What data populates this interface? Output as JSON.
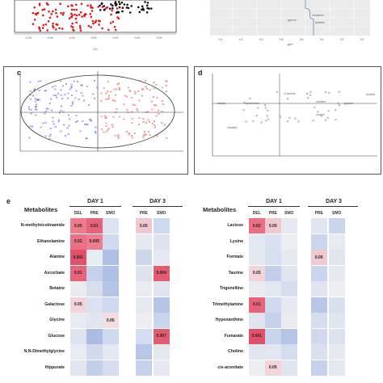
{
  "panels": {
    "a": {
      "xlabel": "LV1",
      "xticks": [
        "-0.03",
        "-0.02",
        "-0.01",
        "0.00",
        "0.01",
        "0.02",
        "0.03"
      ]
    },
    "b": {
      "labels": [
        "creatinine",
        "glycine",
        "betaine"
      ],
      "xticks": [
        "4.4",
        "4.2",
        "4.0",
        "3.8",
        "3.6",
        "3.4",
        "3.2",
        "3.0"
      ],
      "xlabel": "ppm"
    },
    "c": {
      "label": "c"
    },
    "d": {
      "label": "d",
      "annotations": [
        "lactate",
        "myoinositol",
        "taurine",
        "creatine",
        "glycine",
        "betaine",
        "creatine",
        "inositol"
      ]
    },
    "e": {
      "label": "e"
    }
  },
  "table": {
    "metabolites_header": "Metabolites",
    "day1": "DAY 1",
    "day3": "DAY 3",
    "cols": [
      "DEL",
      "PRE",
      "SMO",
      "PRE",
      "SMO"
    ],
    "left": {
      "rows": [
        "N-methylnicotinamide",
        "Ethanolamine",
        "Alanine",
        "Ascorbate",
        "Betaine",
        "Galactose",
        "Glycine",
        "Glucose",
        "N,N-Dimethylglycine",
        "Hippurate"
      ],
      "cells": [
        [
          {
            "c": "#ef7b8c",
            "v": "0.05"
          },
          {
            "c": "#e8627a",
            "v": "0.01"
          },
          {
            "c": "#dbe3ef",
            "v": ""
          },
          {
            "c": "#f0c8cf",
            "v": "0.05"
          },
          {
            "c": "#ced8ee",
            "v": ""
          }
        ],
        [
          {
            "c": "#ec6f84",
            "v": "0.02"
          },
          {
            "c": "#ee7b8e",
            "v": "0.005"
          },
          {
            "c": "#cfd9ef",
            "v": ""
          },
          {
            "c": "#e3e8f1",
            "v": ""
          },
          {
            "c": "#dfe3ec",
            "v": ""
          }
        ],
        [
          {
            "c": "#e4506b",
            "v": "0.001"
          },
          {
            "c": "#e7ebf2",
            "v": ""
          },
          {
            "c": "#aebfe5",
            "v": ""
          },
          {
            "c": "#cdd7ec",
            "v": ""
          },
          {
            "c": "#e6e9ef",
            "v": ""
          }
        ],
        [
          {
            "c": "#e8627a",
            "v": "0.01"
          },
          {
            "c": "#c6d2ec",
            "v": ""
          },
          {
            "c": "#afc0e6",
            "v": ""
          },
          {
            "c": "#dce2ee",
            "v": ""
          },
          {
            "c": "#e55b72",
            "v": "0.004"
          }
        ],
        [
          {
            "c": "#e9ebf0",
            "v": ""
          },
          {
            "c": "#d7deed",
            "v": ""
          },
          {
            "c": "#b4c4e7",
            "v": ""
          },
          {
            "c": "#e9ebf0",
            "v": ""
          },
          {
            "c": "#dfe4ef",
            "v": ""
          }
        ],
        [
          {
            "c": "#f3d4da",
            "v": "0.05"
          },
          {
            "c": "#dbe1ee",
            "v": ""
          },
          {
            "c": "#ced8ee",
            "v": ""
          },
          {
            "c": "#e6e9ef",
            "v": ""
          },
          {
            "c": "#b6c5e7",
            "v": ""
          }
        ],
        [
          {
            "c": "#e7eaf1",
            "v": ""
          },
          {
            "c": "#e1e5ef",
            "v": ""
          },
          {
            "c": "#f3dde1",
            "v": "0.05"
          },
          {
            "c": "#eceef2",
            "v": ""
          },
          {
            "c": "#c9d4ed",
            "v": ""
          }
        ],
        [
          {
            "c": "#dde3ef",
            "v": ""
          },
          {
            "c": "#aabce4",
            "v": ""
          },
          {
            "c": "#ced8ee",
            "v": ""
          },
          {
            "c": "#d3dcee",
            "v": ""
          },
          {
            "c": "#e55b72",
            "v": "0.007"
          }
        ],
        [
          {
            "c": "#e8ebf1",
            "v": ""
          },
          {
            "c": "#d0d9ee",
            "v": ""
          },
          {
            "c": "#e4e8f0",
            "v": ""
          },
          {
            "c": "#b8c7e8",
            "v": ""
          },
          {
            "c": "#e3e7f0",
            "v": ""
          }
        ],
        [
          {
            "c": "#e0e5ef",
            "v": ""
          },
          {
            "c": "#c2cfeb",
            "v": ""
          },
          {
            "c": "#d5ddee",
            "v": ""
          },
          {
            "c": "#c6d2ec",
            "v": ""
          },
          {
            "c": "#e6e9ef",
            "v": ""
          }
        ]
      ]
    },
    "right": {
      "rows": [
        "Lactose",
        "Lysine",
        "Formate",
        "Taurine",
        "Trigonelline",
        "Trimethylamine",
        "Hypoxanthine",
        "Fumarate",
        "Choline",
        "cis-aconitate"
      ],
      "cells": [
        [
          {
            "c": "#ec6f84",
            "v": "0.02"
          },
          {
            "c": "#f0c8cf",
            "v": "0.05"
          },
          {
            "c": "#e6e9ef",
            "v": ""
          },
          {
            "c": "#dfe4ef",
            "v": ""
          },
          {
            "c": "#c9d4ed",
            "v": ""
          }
        ],
        [
          {
            "c": "#e3e7f0",
            "v": ""
          },
          {
            "c": "#dae1ee",
            "v": ""
          },
          {
            "c": "#eceef2",
            "v": ""
          },
          {
            "c": "#cbd5ed",
            "v": ""
          },
          {
            "c": "#e7eaf1",
            "v": ""
          }
        ],
        [
          {
            "c": "#e3e7f0",
            "v": ""
          },
          {
            "c": "#d7deed",
            "v": ""
          },
          {
            "c": "#e6e9ef",
            "v": ""
          },
          {
            "c": "#f0c8cf",
            "v": "0.05"
          },
          {
            "c": "#dfe4ef",
            "v": ""
          }
        ],
        [
          {
            "c": "#f3d4da",
            "v": "0.05"
          },
          {
            "c": "#c2cfeb",
            "v": ""
          },
          {
            "c": "#e1e5ef",
            "v": ""
          },
          {
            "c": "#c9d4ed",
            "v": ""
          },
          {
            "c": "#e6e9ef",
            "v": ""
          }
        ],
        [
          {
            "c": "#e9ebf0",
            "v": ""
          },
          {
            "c": "#e3e7f0",
            "v": ""
          },
          {
            "c": "#d5ddee",
            "v": ""
          },
          {
            "c": "#dfe4ef",
            "v": ""
          },
          {
            "c": "#eceef2",
            "v": ""
          }
        ],
        [
          {
            "c": "#e8627a",
            "v": "0.01"
          },
          {
            "c": "#d0d9ee",
            "v": ""
          },
          {
            "c": "#e6e9ef",
            "v": ""
          },
          {
            "c": "#b8c7e8",
            "v": ""
          },
          {
            "c": "#dae1ee",
            "v": ""
          }
        ],
        [
          {
            "c": "#dfe4ef",
            "v": ""
          },
          {
            "c": "#c6d2ec",
            "v": ""
          },
          {
            "c": "#e9ebf0",
            "v": ""
          },
          {
            "c": "#d5ddee",
            "v": ""
          },
          {
            "c": "#e1e5ef",
            "v": ""
          }
        ],
        [
          {
            "c": "#e4506b",
            "v": "0.001"
          },
          {
            "c": "#c9d4ed",
            "v": ""
          },
          {
            "c": "#b4c4e7",
            "v": ""
          },
          {
            "c": "#d0d9ee",
            "v": ""
          },
          {
            "c": "#dbe1ee",
            "v": ""
          }
        ],
        [
          {
            "c": "#e1e5ef",
            "v": ""
          },
          {
            "c": "#e3e7f0",
            "v": ""
          },
          {
            "c": "#d3dcee",
            "v": ""
          },
          {
            "c": "#dae1ee",
            "v": ""
          },
          {
            "c": "#e6e9ef",
            "v": ""
          }
        ],
        [
          {
            "c": "#eceef2",
            "v": ""
          },
          {
            "c": "#f3d4da",
            "v": "0.05"
          },
          {
            "c": "#dfe4ef",
            "v": ""
          },
          {
            "c": "#c6d2ec",
            "v": ""
          },
          {
            "c": "#e3e7f0",
            "v": ""
          }
        ]
      ]
    }
  }
}
